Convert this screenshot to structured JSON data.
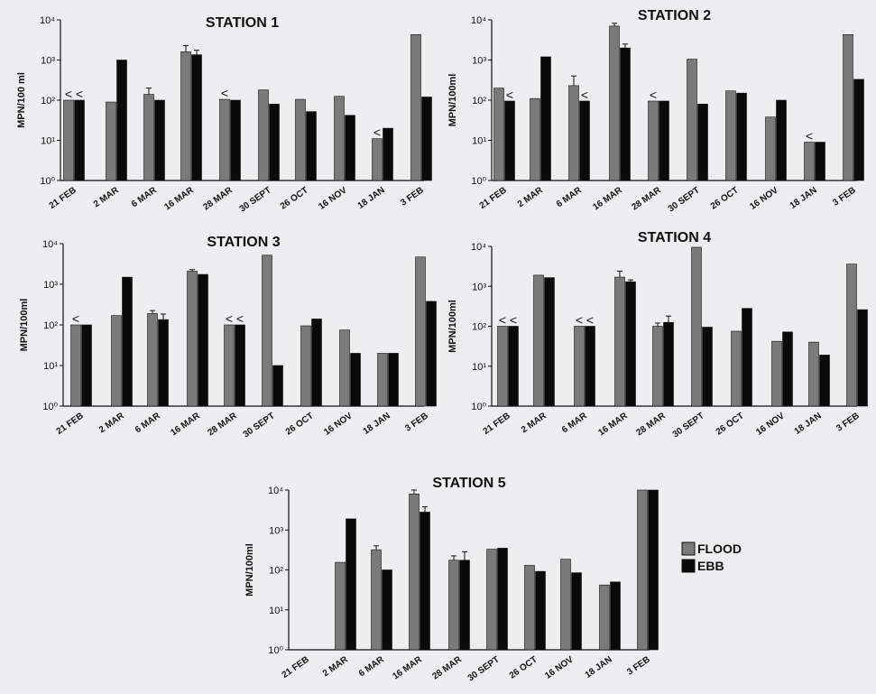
{
  "chart_data": [
    {
      "type": "bar",
      "title": "STATION 1",
      "ylabel": "MPN/100 ml",
      "yscale": "log",
      "ylim": [
        1,
        10000
      ],
      "yticks": [
        "10⁰",
        "10¹",
        "10²",
        "10³",
        "10⁴"
      ],
      "categories": [
        "21 FEB",
        "2 MAR",
        "6 MAR",
        "16 MAR",
        "28 MAR",
        "30 SEPT",
        "26 OCT",
        "16 NOV",
        "18 JAN",
        "3 FEB"
      ],
      "series": [
        {
          "name": "FLOOD",
          "values": [
            100,
            90,
            140,
            1600,
            105,
            180,
            105,
            125,
            11,
            4300
          ]
        },
        {
          "name": "EBB",
          "values": [
            100,
            1000,
            100,
            1350,
            100,
            80,
            52,
            42,
            20,
            120
          ]
        }
      ],
      "error_bars": {
        "FLOOD": [
          null,
          null,
          60,
          700,
          null,
          null,
          null,
          null,
          null,
          null
        ],
        "EBB": [
          null,
          null,
          null,
          400,
          null,
          null,
          null,
          null,
          null,
          null
        ]
      },
      "less_than_markers": [
        {
          "category": "21 FEB",
          "series": "FLOOD",
          "label": "<"
        },
        {
          "category": "21 FEB",
          "series": "EBB",
          "label": "<"
        },
        {
          "category": "28 MAR",
          "series": "FLOOD",
          "label": "<"
        },
        {
          "category": "18 JAN",
          "series": "FLOOD",
          "label": "<"
        }
      ]
    },
    {
      "type": "bar",
      "title": "STATION 2",
      "ylabel": "MPN/100ml",
      "yscale": "log",
      "ylim": [
        1,
        10000
      ],
      "yticks": [
        "10⁰",
        "10¹",
        "10²",
        "10³",
        "10⁴"
      ],
      "categories": [
        "21 FEB",
        "2 MAR",
        "6 MAR",
        "16 MAR",
        "28 MAR",
        "30 SEPT",
        "26 OCT",
        "16 NOV",
        "18 JAN",
        "3 FEB"
      ],
      "series": [
        {
          "name": "FLOOD",
          "values": [
            200,
            110,
            230,
            7000,
            95,
            1050,
            170,
            38,
            9,
            4300
          ]
        },
        {
          "name": "EBB",
          "values": [
            95,
            1200,
            95,
            2000,
            95,
            80,
            150,
            100,
            9,
            330
          ]
        }
      ],
      "error_bars": {
        "FLOOD": [
          null,
          null,
          170,
          1200,
          null,
          null,
          null,
          null,
          null,
          null
        ],
        "EBB": [
          null,
          null,
          null,
          500,
          null,
          null,
          null,
          null,
          null,
          null
        ]
      },
      "less_than_markers": [
        {
          "category": "21 FEB",
          "series": "EBB",
          "label": "<"
        },
        {
          "category": "6 MAR",
          "series": "EBB",
          "label": "<"
        },
        {
          "category": "28 MAR",
          "series": "FLOOD",
          "label": "<"
        },
        {
          "category": "18 JAN",
          "series": "FLOOD",
          "label": "<"
        }
      ]
    },
    {
      "type": "bar",
      "title": "STATION 3",
      "ylabel": "MPN/100ml",
      "yscale": "log",
      "ylim": [
        1,
        10000
      ],
      "yticks": [
        "10⁰",
        "10¹",
        "10²",
        "10³",
        "10⁴"
      ],
      "categories": [
        "21 FEB",
        "2 MAR",
        "6 MAR",
        "16 MAR",
        "28 MAR",
        "30 SEPT",
        "26 OCT",
        "16 NOV",
        "18 JAN",
        "3 FEB"
      ],
      "series": [
        {
          "name": "FLOOD",
          "values": [
            100,
            170,
            190,
            2100,
            100,
            5200,
            95,
            75,
            20,
            4700
          ]
        },
        {
          "name": "EBB",
          "values": [
            100,
            1500,
            135,
            1750,
            100,
            10,
            140,
            20,
            20,
            380
          ]
        }
      ],
      "error_bars": {
        "FLOOD": [
          null,
          null,
          35,
          200,
          null,
          null,
          null,
          null,
          null,
          null
        ],
        "EBB": [
          null,
          null,
          50,
          null,
          null,
          null,
          null,
          null,
          null,
          null
        ]
      },
      "less_than_markers": [
        {
          "category": "21 FEB",
          "series": "FLOOD",
          "label": "<"
        },
        {
          "category": "28 MAR",
          "series": "FLOOD",
          "label": "<"
        },
        {
          "category": "28 MAR",
          "series": "EBB",
          "label": "<"
        }
      ]
    },
    {
      "type": "bar",
      "title": "STATION 4",
      "ylabel": "MPN/100ml",
      "yscale": "log",
      "ylim": [
        1,
        10000
      ],
      "yticks": [
        "10⁰",
        "10¹",
        "10²",
        "10³",
        "10⁴"
      ],
      "categories": [
        "21 FEB",
        "2 MAR",
        "6 MAR",
        "16 MAR",
        "28 MAR",
        "30 SEPT",
        "26 OCT",
        "16 NOV",
        "18 JAN",
        "3 FEB"
      ],
      "series": [
        {
          "name": "FLOOD",
          "values": [
            100,
            1900,
            100,
            1700,
            100,
            9500,
            75,
            42,
            40,
            3600
          ]
        },
        {
          "name": "EBB",
          "values": [
            100,
            1650,
            100,
            1300,
            125,
            95,
            280,
            72,
            19,
            260
          ]
        }
      ],
      "error_bars": {
        "FLOOD": [
          null,
          null,
          null,
          700,
          20,
          null,
          null,
          null,
          null,
          null
        ],
        "EBB": [
          null,
          null,
          null,
          150,
          55,
          null,
          null,
          null,
          null,
          null
        ]
      },
      "less_than_markers": [
        {
          "category": "21 FEB",
          "series": "FLOOD",
          "label": "<"
        },
        {
          "category": "21 FEB",
          "series": "EBB",
          "label": "<"
        },
        {
          "category": "6 MAR",
          "series": "FLOOD",
          "label": "<"
        },
        {
          "category": "6 MAR",
          "series": "EBB",
          "label": "<"
        }
      ]
    },
    {
      "type": "bar",
      "title": "STATION 5",
      "ylabel": "MPN/100ml",
      "yscale": "log",
      "ylim": [
        1,
        10000
      ],
      "yticks": [
        "10⁰",
        "10¹",
        "10²",
        "10³",
        "10⁴"
      ],
      "categories": [
        "21 FEB",
        "2 MAR",
        "6 MAR",
        "16 MAR",
        "28 MAR",
        "30 SEPT",
        "26 OCT",
        "16 NOV",
        "18 JAN",
        "3 FEB"
      ],
      "series": [
        {
          "name": "FLOOD",
          "values": [
            null,
            155,
            320,
            8000,
            175,
            330,
            130,
            185,
            42,
            10000
          ]
        },
        {
          "name": "EBB",
          "values": [
            null,
            1900,
            100,
            2800,
            175,
            350,
            92,
            85,
            50,
            10000
          ]
        }
      ],
      "error_bars": {
        "FLOOD": [
          null,
          null,
          80,
          2000,
          50,
          null,
          null,
          null,
          null,
          null
        ],
        "EBB": [
          null,
          null,
          null,
          1000,
          110,
          null,
          null,
          null,
          null,
          null
        ]
      },
      "less_than_markers": []
    }
  ],
  "legend": {
    "items": [
      {
        "label": "FLOOD",
        "color": "#7a7a7a"
      },
      {
        "label": "EBB",
        "color": "#0a0a0a"
      }
    ]
  },
  "colors": {
    "flood": "#7a7a7a",
    "ebb": "#0a0a0a",
    "background": "#eceef0"
  }
}
